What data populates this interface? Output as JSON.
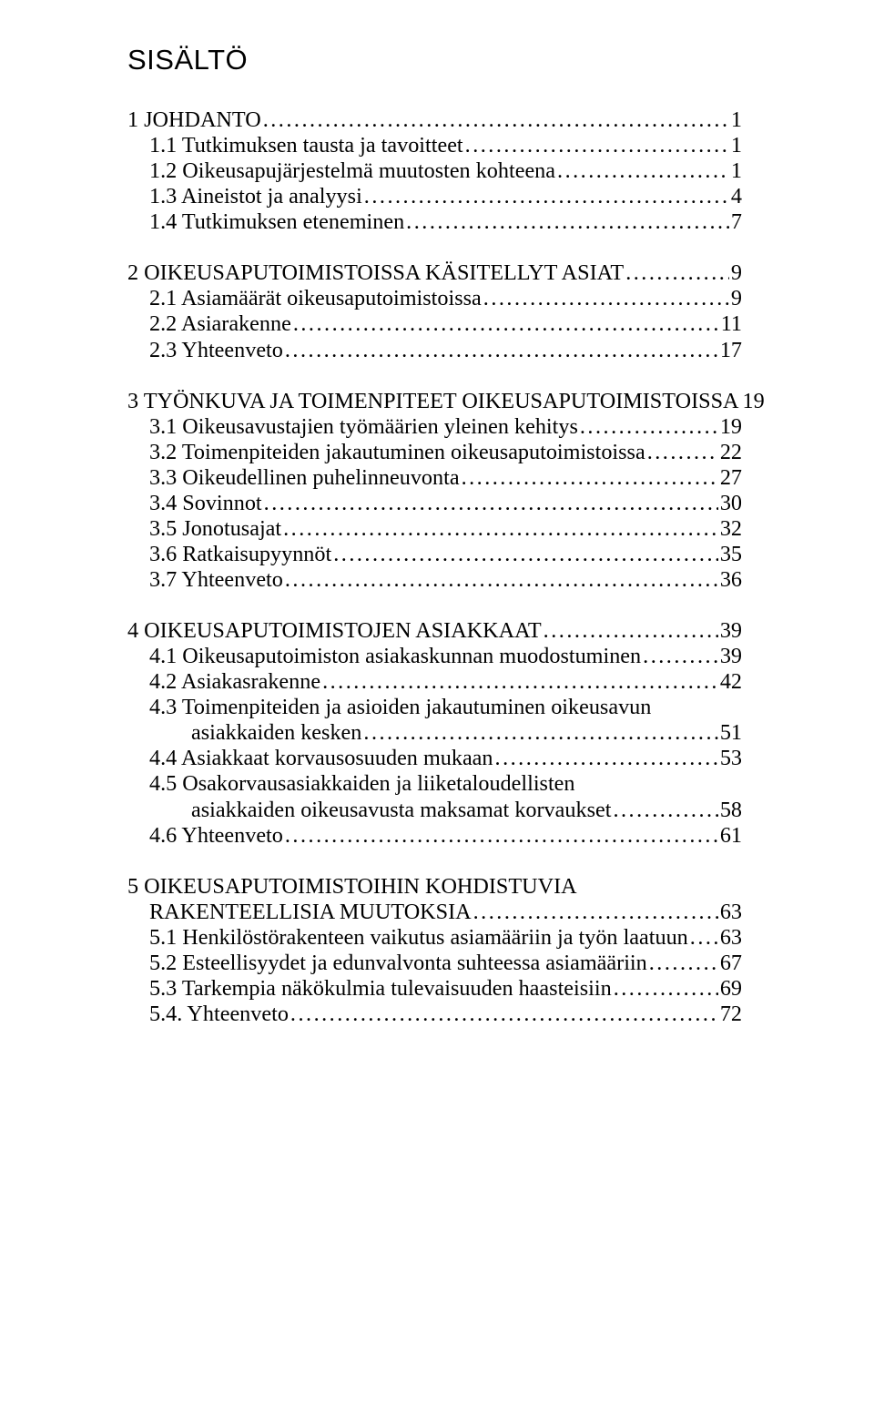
{
  "heading": "SISÄLTÖ",
  "toc": [
    {
      "items": [
        {
          "label": "1 JOHDANTO",
          "page": "1",
          "indent": 0
        },
        {
          "label": "1.1 Tutkimuksen tausta ja tavoitteet",
          "page": "1",
          "indent": 1
        },
        {
          "label": "1.2 Oikeusapujärjestelmä muutosten kohteena",
          "page": "1",
          "indent": 1
        },
        {
          "label": "1.3 Aineistot ja analyysi",
          "page": "4",
          "indent": 1
        },
        {
          "label": "1.4 Tutkimuksen eteneminen",
          "page": "7",
          "indent": 1
        }
      ]
    },
    {
      "items": [
        {
          "label": "2 OIKEUSAPUTOIMISTOISSA KÄSITELLYT ASIAT",
          "page": "9",
          "indent": 0
        },
        {
          "label": "2.1 Asiamäärät oikeusaputoimistoissa",
          "page": "9",
          "indent": 1
        },
        {
          "label": "2.2 Asiarakenne",
          "page": "11",
          "indent": 1
        },
        {
          "label": "2.3 Yhteenveto",
          "page": "17",
          "indent": 1
        }
      ]
    },
    {
      "items": [
        {
          "label": "3 TYÖNKUVA JA TOIMENPITEET OIKEUSAPUTOIMISTOISSA",
          "page": "19",
          "indent": 0,
          "tight": true
        },
        {
          "label": "3.1 Oikeusavustajien työmäärien yleinen kehitys",
          "page": "19",
          "indent": 1
        },
        {
          "label": "3.2 Toimenpiteiden jakautuminen oikeusaputoimistoissa",
          "page": "22",
          "indent": 1
        },
        {
          "label": "3.3 Oikeudellinen puhelinneuvonta",
          "page": "27",
          "indent": 1
        },
        {
          "label": "3.4 Sovinnot",
          "page": "30",
          "indent": 1
        },
        {
          "label": "3.5 Jonotusajat",
          "page": "32",
          "indent": 1
        },
        {
          "label": "3.6 Ratkaisupyynnöt",
          "page": "35",
          "indent": 1
        },
        {
          "label": "3.7 Yhteenveto",
          "page": "36",
          "indent": 1
        }
      ]
    },
    {
      "items": [
        {
          "label": "4 OIKEUSAPUTOIMISTOJEN ASIAKKAAT",
          "page": "39",
          "indent": 0
        },
        {
          "label": "4.1 Oikeusaputoimiston asiakaskunnan muodostuminen",
          "page": "39",
          "indent": 1
        },
        {
          "label": "4.2 Asiakasrakenne",
          "page": "42",
          "indent": 1
        },
        {
          "label": "4.3 Toimenpiteiden ja asioiden jakautuminen oikeusavun",
          "cont": "asiakkaiden kesken",
          "page": "51",
          "indent": 1
        },
        {
          "label": "4.4 Asiakkaat korvausosuuden mukaan",
          "page": "53",
          "indent": 1
        },
        {
          "label": "4.5 Osakorvausasiakkaiden ja liiketaloudellisten",
          "cont": "asiakkaiden oikeusavusta maksamat korvaukset",
          "page": "58",
          "indent": 1
        },
        {
          "label": "4.6 Yhteenveto",
          "page": "61",
          "indent": 1
        }
      ]
    },
    {
      "items": [
        {
          "label": "5 OIKEUSAPUTOIMISTOIHIN KOHDISTUVIA",
          "cont_head": "RAKENTEELLISIA MUUTOKSIA",
          "page": "63",
          "indent": 0
        },
        {
          "label": "5.1 Henkilöstörakenteen vaikutus asiamääriin ja työn laatuun",
          "page": "63",
          "indent": 1
        },
        {
          "label": "5.2 Esteellisyydet ja edunvalvonta suhteessa asiamääriin",
          "page": "67",
          "indent": 1
        },
        {
          "label": "5.3 Tarkempia näkökulmia tulevaisuuden haasteisiin",
          "page": "69",
          "indent": 1
        },
        {
          "label": "5.4. Yhteenveto",
          "page": "72",
          "indent": 1
        }
      ]
    }
  ]
}
